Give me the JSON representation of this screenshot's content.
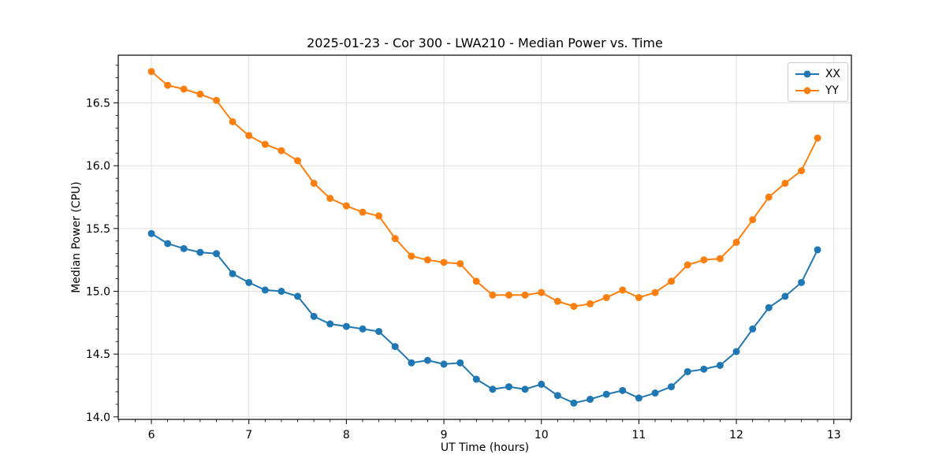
{
  "figure": {
    "background": "#ffffff"
  },
  "chart_data": {
    "type": "line",
    "title": "2025-01-23 - Cor 300 - LWA210 - Median Power vs. Time",
    "xlabel": "UT Time (hours)",
    "ylabel": "Median Power (CPU)",
    "x": [
      6.0,
      6.167,
      6.333,
      6.5,
      6.667,
      6.833,
      7.0,
      7.167,
      7.333,
      7.5,
      7.667,
      7.833,
      8.0,
      8.167,
      8.333,
      8.5,
      8.667,
      8.833,
      9.0,
      9.167,
      9.333,
      9.5,
      9.667,
      9.833,
      10.0,
      10.167,
      10.333,
      10.5,
      10.667,
      10.833,
      11.0,
      11.167,
      11.333,
      11.5,
      11.667,
      11.833,
      12.0,
      12.167,
      12.333,
      12.5,
      12.667,
      12.833
    ],
    "series": [
      {
        "name": "XX",
        "color": "#1f77b4",
        "values": [
          15.46,
          15.38,
          15.34,
          15.31,
          15.3,
          15.14,
          15.07,
          15.01,
          15.0,
          14.96,
          14.8,
          14.74,
          14.72,
          14.7,
          14.68,
          14.56,
          14.43,
          14.45,
          14.42,
          14.43,
          14.3,
          14.22,
          14.24,
          14.22,
          14.26,
          14.17,
          14.11,
          14.14,
          14.18,
          14.21,
          14.15,
          14.19,
          14.24,
          14.36,
          14.38,
          14.41,
          14.52,
          14.7,
          14.87,
          14.96,
          15.07,
          15.33
        ]
      },
      {
        "name": "YY",
        "color": "#ff7f0e",
        "values": [
          16.75,
          16.64,
          16.61,
          16.57,
          16.52,
          16.35,
          16.24,
          16.17,
          16.12,
          16.04,
          15.86,
          15.74,
          15.68,
          15.63,
          15.6,
          15.42,
          15.28,
          15.25,
          15.23,
          15.22,
          15.08,
          14.97,
          14.97,
          14.97,
          14.99,
          14.92,
          14.88,
          14.9,
          14.95,
          15.01,
          14.95,
          14.99,
          15.08,
          15.21,
          15.25,
          15.26,
          15.39,
          15.57,
          15.75,
          15.86,
          15.96,
          16.22
        ]
      }
    ],
    "xlim": [
      5.66,
      13.18
    ],
    "ylim": [
      13.98,
      16.88
    ],
    "x_ticks": [
      6,
      7,
      8,
      9,
      10,
      11,
      12,
      13
    ],
    "y_ticks": [
      14.0,
      14.5,
      15.0,
      15.5,
      16.0,
      16.5
    ],
    "grid": true,
    "grid_color": "#e0e0e0",
    "marker": "o",
    "legend_position": "upper right"
  }
}
